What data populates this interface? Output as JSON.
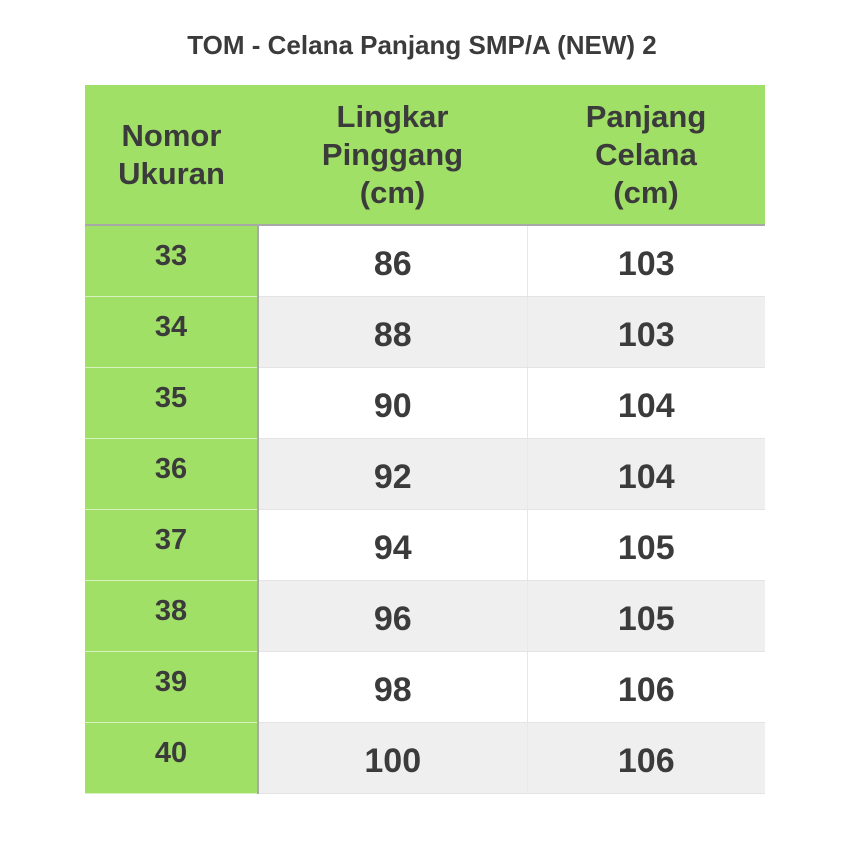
{
  "title": "TOM - Celana Panjang SMP/A (NEW) 2",
  "headers": [
    "Nomor\nUkuran",
    "Lingkar\nPinggang\n(cm)",
    "Panjang\nCelana\n(cm)"
  ],
  "colors": {
    "header_green": "#a0e066",
    "alt_row": "#efefef",
    "text": "#3b3b3b"
  },
  "rows": [
    [
      "33",
      "86",
      "103"
    ],
    [
      "34",
      "88",
      "103"
    ],
    [
      "35",
      "90",
      "104"
    ],
    [
      "36",
      "92",
      "104"
    ],
    [
      "37",
      "94",
      "105"
    ],
    [
      "38",
      "96",
      "105"
    ],
    [
      "39",
      "98",
      "106"
    ],
    [
      "40",
      "100",
      "106"
    ]
  ]
}
